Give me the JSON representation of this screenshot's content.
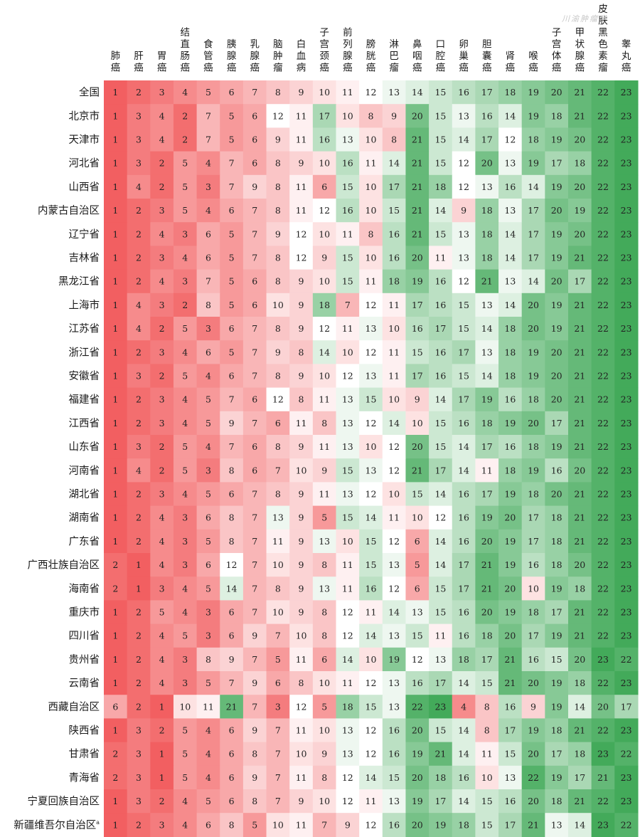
{
  "watermark": "川渝肿瘤学",
  "colors": {
    "low": "#f25f61",
    "mid": "#ffffff",
    "high": "#43aa5a"
  },
  "chart_data": {
    "type": "heatmap",
    "title": "",
    "xlabel": "",
    "ylabel": "",
    "value_range": [
      1,
      23
    ],
    "columns": [
      "肺癌",
      "肝癌",
      "胃癌",
      "结直肠癌",
      "食管癌",
      "胰腺癌",
      "乳腺癌",
      "脑肿瘤",
      "白血病",
      "子宫颈癌",
      "前列腺癌",
      "膀胱癌",
      "淋巴瘤",
      "鼻咽癌",
      "口腔癌",
      "卵巢癌",
      "胆囊癌",
      "肾癌",
      "喉癌",
      "子宫体癌",
      "甲状腺癌",
      "皮肤黑色素瘤",
      "睾丸癌"
    ],
    "rows": [
      "全国",
      "北京市",
      "天津市",
      "河北省",
      "山西省",
      "内蒙古自治区",
      "辽宁省",
      "吉林省",
      "黑龙江省",
      "上海市",
      "江苏省",
      "浙江省",
      "安徽省",
      "福建省",
      "江西省",
      "山东省",
      "河南省",
      "湖北省",
      "湖南省",
      "广东省",
      "广西壮族自治区",
      "海南省",
      "重庆市",
      "四川省",
      "贵州省",
      "云南省",
      "西藏自治区",
      "陕西省",
      "甘肃省",
      "青海省",
      "宁夏回族自治区",
      "新疆维吾尔自治区"
    ],
    "row_note_mark": [
      "",
      "",
      "",
      "",
      "",
      "",
      "",
      "",
      "",
      "",
      "",
      "",
      "",
      "",
      "",
      "",
      "",
      "",
      "",
      "",
      "",
      "",
      "",
      "",
      "",
      "",
      "",
      "",
      "",
      "",
      "",
      "a"
    ],
    "values": [
      [
        1,
        2,
        3,
        4,
        5,
        6,
        7,
        8,
        9,
        10,
        11,
        12,
        13,
        14,
        15,
        16,
        17,
        18,
        19,
        20,
        21,
        22,
        23
      ],
      [
        1,
        3,
        4,
        2,
        7,
        5,
        6,
        12,
        11,
        17,
        10,
        8,
        9,
        20,
        15,
        13,
        16,
        14,
        19,
        18,
        21,
        22,
        23
      ],
      [
        1,
        3,
        4,
        2,
        7,
        5,
        6,
        9,
        11,
        16,
        13,
        10,
        8,
        21,
        15,
        14,
        17,
        12,
        18,
        19,
        20,
        22,
        23
      ],
      [
        1,
        3,
        2,
        5,
        4,
        7,
        6,
        8,
        9,
        10,
        16,
        11,
        14,
        21,
        15,
        12,
        20,
        13,
        19,
        17,
        18,
        22,
        23
      ],
      [
        1,
        4,
        2,
        5,
        3,
        7,
        9,
        8,
        11,
        6,
        15,
        10,
        17,
        21,
        18,
        12,
        13,
        16,
        14,
        19,
        20,
        22,
        23
      ],
      [
        1,
        2,
        3,
        5,
        4,
        6,
        7,
        8,
        11,
        12,
        16,
        10,
        15,
        21,
        14,
        9,
        18,
        13,
        17,
        20,
        19,
        22,
        23
      ],
      [
        1,
        2,
        4,
        3,
        6,
        5,
        7,
        9,
        12,
        10,
        11,
        8,
        16,
        21,
        15,
        13,
        18,
        14,
        17,
        19,
        20,
        22,
        23
      ],
      [
        1,
        2,
        3,
        4,
        6,
        5,
        7,
        8,
        12,
        9,
        15,
        10,
        16,
        20,
        11,
        13,
        18,
        14,
        17,
        19,
        21,
        22,
        23
      ],
      [
        1,
        2,
        4,
        3,
        7,
        5,
        6,
        8,
        9,
        10,
        15,
        11,
        18,
        19,
        16,
        12,
        21,
        13,
        14,
        20,
        17,
        22,
        23
      ],
      [
        1,
        4,
        3,
        2,
        8,
        5,
        6,
        10,
        9,
        18,
        7,
        12,
        11,
        17,
        16,
        15,
        13,
        14,
        20,
        19,
        21,
        22,
        23
      ],
      [
        1,
        4,
        2,
        5,
        3,
        6,
        7,
        8,
        9,
        12,
        11,
        13,
        10,
        16,
        17,
        15,
        14,
        18,
        20,
        19,
        21,
        22,
        23
      ],
      [
        1,
        2,
        3,
        4,
        6,
        5,
        7,
        9,
        8,
        14,
        10,
        12,
        11,
        15,
        16,
        17,
        13,
        18,
        19,
        20,
        21,
        22,
        23
      ],
      [
        1,
        3,
        2,
        5,
        4,
        6,
        7,
        8,
        9,
        10,
        12,
        13,
        11,
        17,
        16,
        15,
        14,
        18,
        19,
        20,
        21,
        22,
        23
      ],
      [
        1,
        2,
        3,
        4,
        5,
        7,
        6,
        12,
        8,
        11,
        13,
        15,
        10,
        9,
        14,
        17,
        19,
        16,
        18,
        20,
        21,
        22,
        23
      ],
      [
        1,
        2,
        3,
        4,
        5,
        9,
        7,
        6,
        11,
        8,
        13,
        12,
        14,
        10,
        15,
        16,
        18,
        19,
        20,
        17,
        21,
        22,
        23
      ],
      [
        1,
        3,
        2,
        5,
        4,
        7,
        6,
        8,
        9,
        11,
        13,
        10,
        12,
        20,
        15,
        14,
        17,
        16,
        18,
        19,
        21,
        22,
        23
      ],
      [
        1,
        4,
        2,
        5,
        3,
        8,
        6,
        7,
        10,
        9,
        15,
        13,
        12,
        21,
        17,
        14,
        11,
        18,
        19,
        16,
        20,
        22,
        23
      ],
      [
        1,
        2,
        3,
        4,
        5,
        6,
        7,
        8,
        9,
        11,
        13,
        12,
        10,
        15,
        14,
        16,
        17,
        19,
        18,
        20,
        21,
        22,
        23
      ],
      [
        1,
        2,
        4,
        3,
        6,
        8,
        7,
        13,
        9,
        5,
        15,
        14,
        11,
        10,
        12,
        16,
        19,
        20,
        17,
        18,
        21,
        22,
        23
      ],
      [
        1,
        2,
        4,
        3,
        5,
        8,
        7,
        11,
        9,
        13,
        10,
        15,
        12,
        6,
        14,
        16,
        20,
        19,
        17,
        18,
        21,
        22,
        23
      ],
      [
        2,
        1,
        4,
        3,
        6,
        12,
        7,
        10,
        9,
        8,
        11,
        15,
        13,
        5,
        14,
        17,
        21,
        19,
        16,
        18,
        20,
        22,
        23
      ],
      [
        2,
        1,
        3,
        4,
        5,
        14,
        7,
        8,
        9,
        13,
        11,
        16,
        12,
        6,
        15,
        17,
        21,
        20,
        10,
        19,
        18,
        22,
        23
      ],
      [
        1,
        2,
        5,
        4,
        3,
        6,
        7,
        10,
        9,
        8,
        12,
        11,
        14,
        13,
        15,
        16,
        20,
        19,
        18,
        17,
        21,
        22,
        23
      ],
      [
        1,
        2,
        4,
        5,
        3,
        6,
        9,
        7,
        10,
        8,
        12,
        14,
        13,
        15,
        11,
        16,
        18,
        20,
        17,
        19,
        21,
        22,
        23
      ],
      [
        1,
        2,
        4,
        3,
        8,
        9,
        7,
        5,
        11,
        6,
        14,
        10,
        19,
        12,
        13,
        18,
        17,
        21,
        16,
        15,
        20,
        23,
        22
      ],
      [
        1,
        2,
        4,
        3,
        5,
        7,
        9,
        6,
        8,
        10,
        11,
        12,
        13,
        16,
        17,
        14,
        15,
        21,
        20,
        19,
        18,
        22,
        23
      ],
      [
        6,
        2,
        1,
        10,
        11,
        21,
        7,
        3,
        12,
        5,
        18,
        15,
        13,
        22,
        23,
        4,
        8,
        16,
        9,
        19,
        14,
        20,
        17
      ],
      [
        1,
        3,
        2,
        5,
        4,
        6,
        9,
        7,
        11,
        10,
        13,
        12,
        16,
        20,
        15,
        14,
        8,
        17,
        19,
        18,
        21,
        22,
        23
      ],
      [
        2,
        3,
        1,
        5,
        4,
        6,
        8,
        7,
        10,
        9,
        13,
        12,
        16,
        19,
        21,
        14,
        11,
        15,
        20,
        17,
        18,
        23,
        22
      ],
      [
        2,
        3,
        1,
        5,
        4,
        6,
        9,
        7,
        11,
        8,
        12,
        14,
        15,
        20,
        18,
        16,
        10,
        13,
        22,
        19,
        17,
        21,
        23
      ],
      [
        1,
        3,
        2,
        4,
        5,
        6,
        8,
        7,
        9,
        10,
        12,
        11,
        13,
        19,
        17,
        14,
        15,
        16,
        20,
        18,
        21,
        22,
        23
      ],
      [
        1,
        2,
        3,
        4,
        6,
        8,
        5,
        10,
        11,
        7,
        9,
        12,
        16,
        20,
        19,
        18,
        15,
        17,
        21,
        13,
        14,
        23,
        22
      ]
    ]
  }
}
